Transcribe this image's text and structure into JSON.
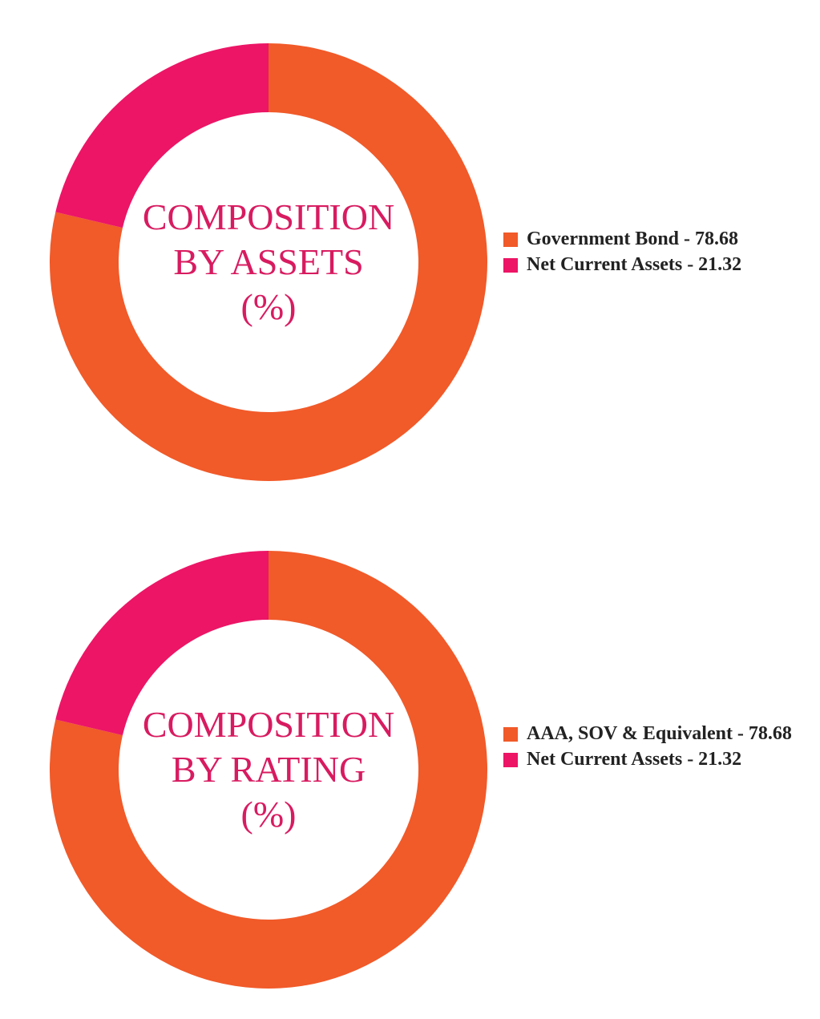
{
  "chart_data": [
    {
      "type": "donut",
      "title": [
        "COMPOSITION",
        "BY ASSETS",
        "(%)"
      ],
      "categories": [
        "Government Bond - 78.68",
        "Net Current Assets - 21.32"
      ],
      "values": [
        78.68,
        21.32
      ],
      "colors": [
        "#f15a29",
        "#ec1566"
      ]
    },
    {
      "type": "donut",
      "title": [
        "COMPOSITION",
        "BY RATING",
        "(%)"
      ],
      "categories": [
        "AAA, SOV & Equivalent - 78.68",
        "Net Current Assets - 21.32"
      ],
      "values": [
        78.68,
        21.32
      ],
      "colors": [
        "#f15a29",
        "#ec1566"
      ]
    }
  ]
}
